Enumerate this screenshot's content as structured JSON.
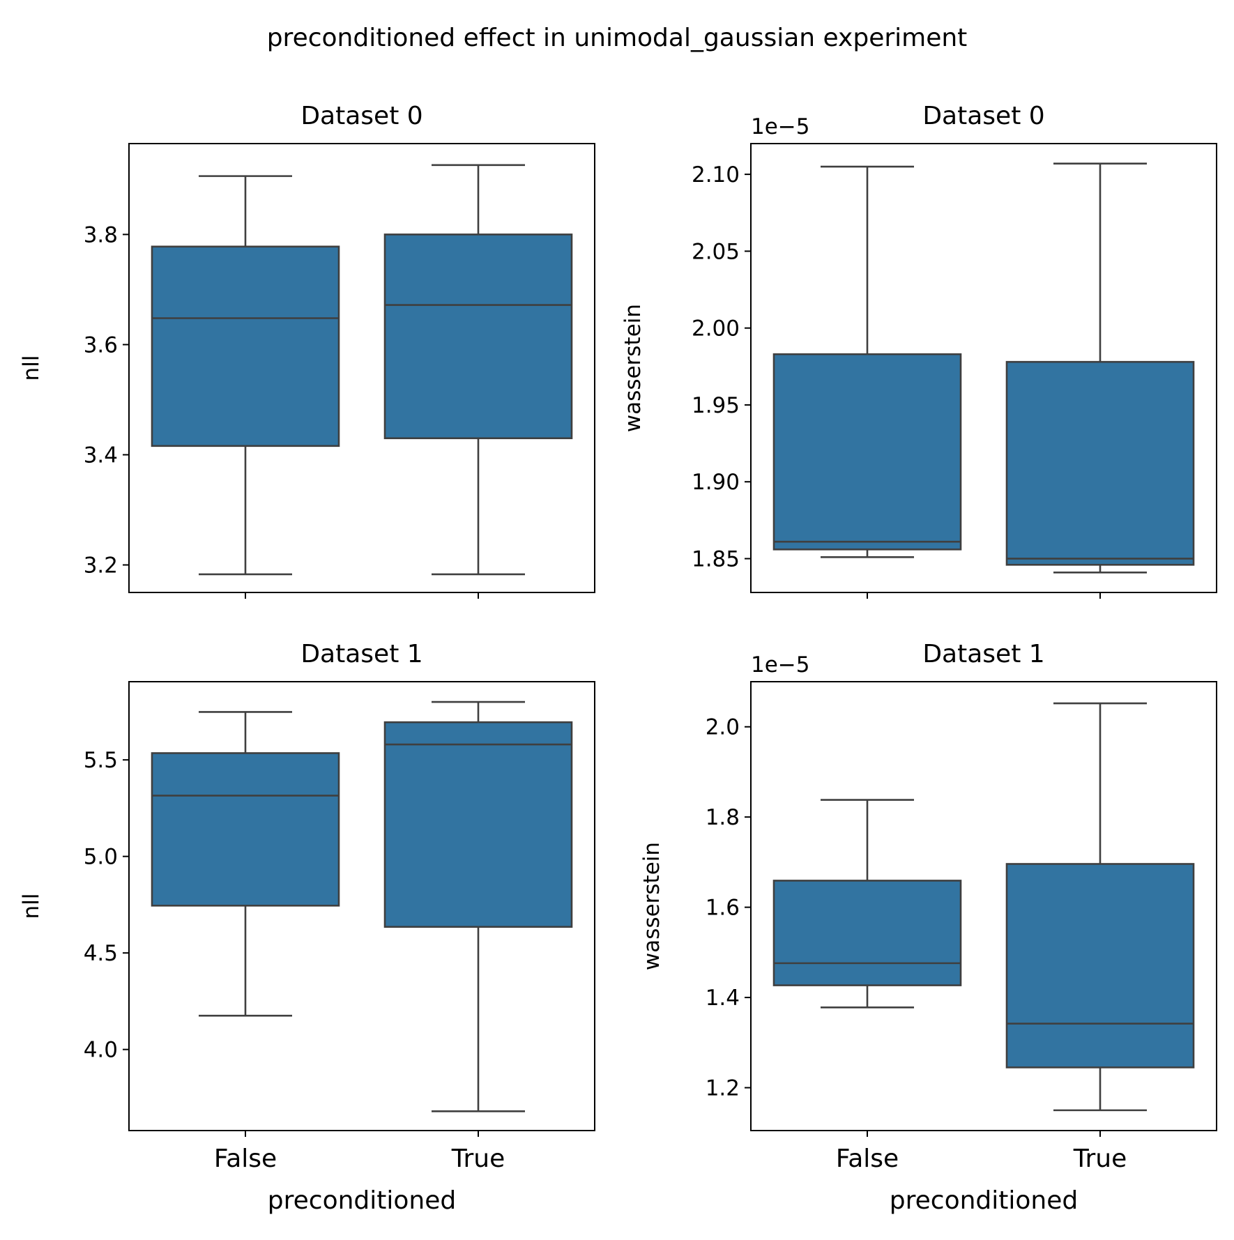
{
  "figure": {
    "suptitle": "preconditioned effect in unimodal_gaussian experiment"
  },
  "chart_data": [
    {
      "type": "box",
      "title": "Dataset 0",
      "xlabel": "",
      "ylabel": "nll",
      "offset_text": "",
      "categories": [
        "False",
        "True"
      ],
      "show_xticklabels": false,
      "ylim": [
        3.15,
        3.965
      ],
      "yticks": [
        3.2,
        3.4,
        3.6,
        3.8
      ],
      "ytick_labels": [
        "3.2",
        "3.4",
        "3.6",
        "3.8"
      ],
      "boxes": [
        {
          "whisker_low": 3.183,
          "q1": 3.416,
          "median": 3.648,
          "q3": 3.778,
          "whisker_high": 3.906
        },
        {
          "whisker_low": 3.183,
          "q1": 3.43,
          "median": 3.672,
          "q3": 3.8,
          "whisker_high": 3.926
        }
      ],
      "color": "#3274a1",
      "edge_color": "#3f3f3f",
      "grid": false
    },
    {
      "type": "box",
      "title": "Dataset 0",
      "xlabel": "",
      "ylabel": "wasserstein",
      "offset_text": "1e−5",
      "categories": [
        "False",
        "True"
      ],
      "show_xticklabels": false,
      "ylim": [
        1.828,
        2.12
      ],
      "yticks": [
        1.85,
        1.9,
        1.95,
        2.0,
        2.05,
        2.1
      ],
      "ytick_labels": [
        "1.85",
        "1.90",
        "1.95",
        "2.00",
        "2.05",
        "2.10"
      ],
      "boxes": [
        {
          "whisker_low": 1.851,
          "q1": 1.856,
          "median": 1.861,
          "q3": 1.983,
          "whisker_high": 2.105
        },
        {
          "whisker_low": 1.841,
          "q1": 1.846,
          "median": 1.85,
          "q3": 1.978,
          "whisker_high": 2.107
        }
      ],
      "color": "#3274a1",
      "edge_color": "#3f3f3f",
      "grid": false
    },
    {
      "type": "box",
      "title": "Dataset 1",
      "xlabel": "preconditioned",
      "ylabel": "nll",
      "offset_text": "",
      "categories": [
        "False",
        "True"
      ],
      "show_xticklabels": true,
      "ylim": [
        3.58,
        5.905
      ],
      "yticks": [
        4.0,
        4.5,
        5.0,
        5.5
      ],
      "ytick_labels": [
        "4.0",
        "4.5",
        "5.0",
        "5.5"
      ],
      "boxes": [
        {
          "whisker_low": 4.175,
          "q1": 4.745,
          "median": 5.315,
          "q3": 5.535,
          "whisker_high": 5.748
        },
        {
          "whisker_low": 3.68,
          "q1": 4.635,
          "median": 5.58,
          "q3": 5.695,
          "whisker_high": 5.8
        }
      ],
      "color": "#3274a1",
      "edge_color": "#3f3f3f",
      "grid": false
    },
    {
      "type": "box",
      "title": "Dataset 1",
      "xlabel": "preconditioned",
      "ylabel": "wasserstein",
      "offset_text": "1e−5",
      "categories": [
        "False",
        "True"
      ],
      "show_xticklabels": true,
      "ylim": [
        1.105,
        2.1
      ],
      "yticks": [
        1.2,
        1.4,
        1.6,
        1.8,
        2.0
      ],
      "ytick_labels": [
        "1.2",
        "1.4",
        "1.6",
        "1.8",
        "2.0"
      ],
      "boxes": [
        {
          "whisker_low": 1.378,
          "q1": 1.427,
          "median": 1.476,
          "q3": 1.659,
          "whisker_high": 1.838
        },
        {
          "whisker_low": 1.15,
          "q1": 1.245,
          "median": 1.342,
          "q3": 1.696,
          "whisker_high": 2.052
        }
      ],
      "color": "#3274a1",
      "edge_color": "#3f3f3f",
      "grid": false
    }
  ]
}
